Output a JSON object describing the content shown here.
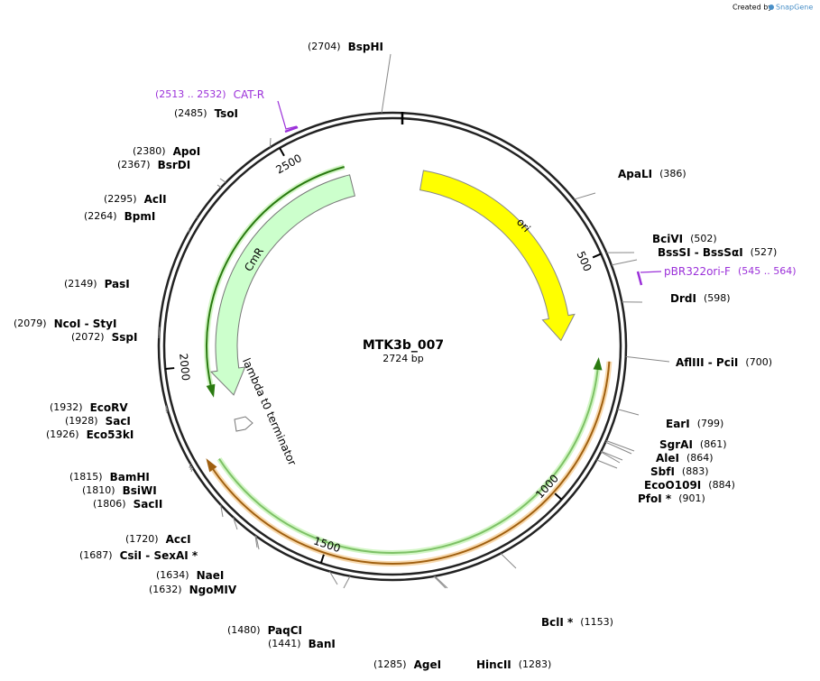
{
  "watermark": {
    "prefix": "Created by",
    "brand": "SnapGene"
  },
  "plasmid": {
    "name": "MTK3b_007",
    "length": "2724 bp"
  },
  "ticks": [
    "500",
    "1000",
    "1500",
    "2000",
    "2500"
  ],
  "features": {
    "ori": "ori",
    "cmr": "CmR",
    "terminator": "lambda t0 terminator"
  },
  "primers": [
    {
      "name": "CAT-R",
      "range": "(2513 .. 2532)"
    },
    {
      "name": "pBR322ori-F",
      "range": "(545 .. 564)"
    }
  ],
  "sites": [
    {
      "name": "BspHI",
      "position": "(2704)"
    },
    {
      "name": "ApaLI",
      "position": "(386)"
    },
    {
      "name": "BciVI",
      "position": "(502)"
    },
    {
      "name": "BssSI - BssSαI",
      "position": "(527)"
    },
    {
      "name": "DrdI",
      "position": "(598)"
    },
    {
      "name": "AflIII - PciI",
      "position": "(700)"
    },
    {
      "name": "EarI",
      "position": "(799)"
    },
    {
      "name": "SgrAI",
      "position": "(861)"
    },
    {
      "name": "AleI",
      "position": "(864)"
    },
    {
      "name": "SbfI",
      "position": "(883)"
    },
    {
      "name": "EcoO109I",
      "position": "(884)"
    },
    {
      "name": "PfoI *",
      "position": "(901)"
    },
    {
      "name": "BclI *",
      "position": "(1153)"
    },
    {
      "name": "HincII",
      "position": "(1283)"
    },
    {
      "name": "AgeI",
      "position": "(1285)"
    },
    {
      "name": "BanI",
      "position": "(1441)"
    },
    {
      "name": "PaqCI",
      "position": "(1480)"
    },
    {
      "name": "NgoMIV",
      "position": "(1632)"
    },
    {
      "name": "NaeI",
      "position": "(1634)"
    },
    {
      "name": "CsiI - SexAI *",
      "position": "(1687)"
    },
    {
      "name": "AccI",
      "position": "(1720)"
    },
    {
      "name": "SacII",
      "position": "(1806)"
    },
    {
      "name": "BsiWI",
      "position": "(1810)"
    },
    {
      "name": "BamHI",
      "position": "(1815)"
    },
    {
      "name": "Eco53kI",
      "position": "(1926)"
    },
    {
      "name": "SacI",
      "position": "(1928)"
    },
    {
      "name": "EcoRV",
      "position": "(1932)"
    },
    {
      "name": "SspI",
      "position": "(2072)"
    },
    {
      "name": "NcoI - StyI",
      "position": "(2079)"
    },
    {
      "name": "PasI",
      "position": "(2149)"
    },
    {
      "name": "BpmI",
      "position": "(2264)"
    },
    {
      "name": "AclI",
      "position": "(2295)"
    },
    {
      "name": "BsrDI",
      "position": "(2367)"
    },
    {
      "name": "ApoI",
      "position": "(2380)"
    },
    {
      "name": "TsoI",
      "position": "(2485)"
    }
  ]
}
